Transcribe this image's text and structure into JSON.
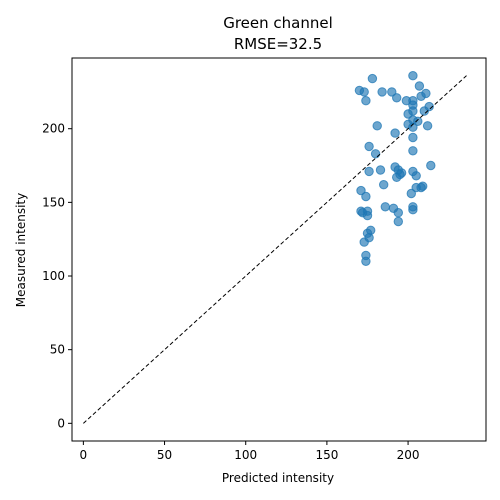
{
  "chart_data": {
    "type": "scatter",
    "title": "Green channel",
    "subtitle": "RMSE=32.5",
    "xlabel": "Predicted intensity",
    "ylabel": "Measured intensity",
    "xlim": [
      -7,
      248
    ],
    "ylim": [
      -12,
      248
    ],
    "xticks": [
      0,
      50,
      100,
      150,
      200
    ],
    "yticks": [
      0,
      50,
      100,
      150,
      200
    ],
    "grid": false,
    "marker_color": "#1f77b4",
    "marker_alpha": 0.65,
    "reference_line": {
      "from": [
        0,
        0
      ],
      "to": [
        236,
        236
      ],
      "style": "dashed",
      "color": "#000000"
    },
    "points": [
      [
        178,
        234
      ],
      [
        203,
        236
      ],
      [
        207,
        229
      ],
      [
        170,
        226
      ],
      [
        173,
        225
      ],
      [
        184,
        225
      ],
      [
        190,
        225
      ],
      [
        211,
        224
      ],
      [
        174,
        219
      ],
      [
        193,
        221
      ],
      [
        199,
        219
      ],
      [
        203,
        219
      ],
      [
        208,
        222
      ],
      [
        203,
        216
      ],
      [
        203,
        212
      ],
      [
        210,
        212
      ],
      [
        213,
        215
      ],
      [
        200,
        210
      ],
      [
        203,
        206
      ],
      [
        206,
        205
      ],
      [
        200,
        203
      ],
      [
        181,
        202
      ],
      [
        203,
        201
      ],
      [
        212,
        202
      ],
      [
        192,
        197
      ],
      [
        203,
        194
      ],
      [
        176,
        188
      ],
      [
        180,
        183
      ],
      [
        203,
        185
      ],
      [
        176,
        171
      ],
      [
        183,
        172
      ],
      [
        192,
        174
      ],
      [
        194,
        172
      ],
      [
        196,
        170
      ],
      [
        195,
        169
      ],
      [
        193,
        167
      ],
      [
        203,
        171
      ],
      [
        205,
        168
      ],
      [
        214,
        175
      ],
      [
        185,
        162
      ],
      [
        205,
        160
      ],
      [
        208,
        160
      ],
      [
        209,
        161
      ],
      [
        171,
        158
      ],
      [
        202,
        156
      ],
      [
        174,
        154
      ],
      [
        186,
        147
      ],
      [
        191,
        146
      ],
      [
        194,
        143
      ],
      [
        203,
        145
      ],
      [
        203,
        147
      ],
      [
        171,
        144
      ],
      [
        172,
        143
      ],
      [
        175,
        144
      ],
      [
        175,
        141
      ],
      [
        194,
        137
      ],
      [
        177,
        131
      ],
      [
        175,
        129
      ],
      [
        176,
        126
      ],
      [
        173,
        123
      ],
      [
        174,
        114
      ],
      [
        174,
        110
      ]
    ]
  }
}
